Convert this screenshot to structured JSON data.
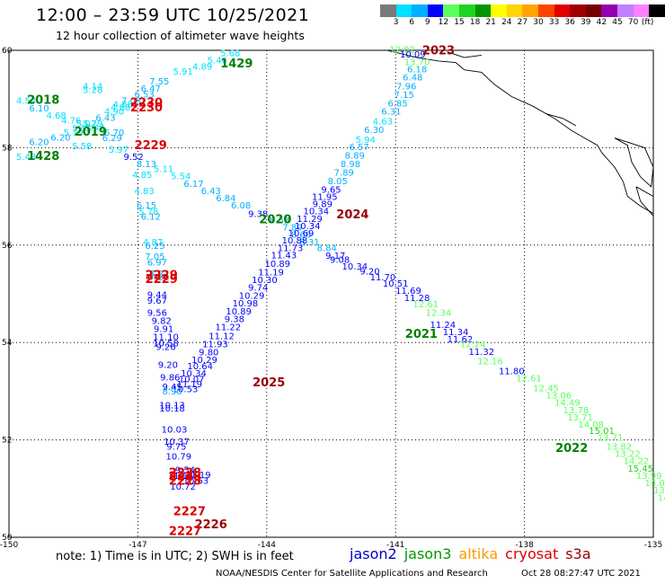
{
  "header": {
    "title": "12:00 – 23:59 UTC 10/25/2021",
    "subtitle": "12 hour collection of altimeter wave heights"
  },
  "color_scale": {
    "unit": "(ft)",
    "swatches": [
      "#7a7a7a",
      "#00e0ff",
      "#00b0ff",
      "#0000ff",
      "#5cff5c",
      "#1ed41e",
      "#009600",
      "#ffff00",
      "#ffd400",
      "#ffa500",
      "#ff4500",
      "#e00000",
      "#a00000",
      "#7a0000",
      "#9400b0",
      "#c080ff",
      "#ff80ff",
      "#000000"
    ],
    "ticks": [
      "3",
      "6",
      "9",
      "12",
      "15",
      "18",
      "21",
      "24",
      "27",
      "30",
      "33",
      "36",
      "39",
      "42",
      "45",
      "70"
    ]
  },
  "axes": {
    "lon_labels": [
      "-150",
      "-147",
      "-144",
      "-141",
      "-138",
      "-135"
    ],
    "lat_labels": [
      "60",
      "58",
      "56",
      "54",
      "52",
      "50"
    ]
  },
  "satellites": [
    {
      "name": "jason2",
      "color": "#0000cc"
    },
    {
      "name": "jason3",
      "color": "#009900"
    },
    {
      "name": "altika",
      "color": "#ff9900"
    },
    {
      "name": "cryosat",
      "color": "#dd0000"
    },
    {
      "name": "s3a",
      "color": "#990000"
    }
  ],
  "pass_labels": [
    {
      "t": "1429",
      "c": "#008000",
      "lon": -144.7,
      "lat": 59.65
    },
    {
      "t": "2018",
      "c": "#008000",
      "lon": -149.2,
      "lat": 58.9
    },
    {
      "t": "2019",
      "c": "#008000",
      "lon": -148.1,
      "lat": 58.25
    },
    {
      "t": "1428",
      "c": "#008000",
      "lon": -149.2,
      "lat": 57.75
    },
    {
      "t": "2230",
      "c": "#dd0000",
      "lon": -146.8,
      "lat": 58.85
    },
    {
      "t": "2230",
      "c": "#dd0000",
      "lon": -146.8,
      "lat": 58.75
    },
    {
      "t": "2229",
      "c": "#dd0000",
      "lon": -146.7,
      "lat": 57.97
    },
    {
      "t": "2020",
      "c": "#008000",
      "lon": -143.8,
      "lat": 56.45
    },
    {
      "t": "2024",
      "c": "#990000",
      "lon": -142.0,
      "lat": 56.55
    },
    {
      "t": "2229",
      "c": "#dd0000",
      "lon": -146.45,
      "lat": 55.3
    },
    {
      "t": "2229",
      "c": "#dd0000",
      "lon": -146.45,
      "lat": 55.22
    },
    {
      "t": "2021",
      "c": "#008000",
      "lon": -140.4,
      "lat": 54.1
    },
    {
      "t": "2025",
      "c": "#990000",
      "lon": -143.95,
      "lat": 53.1
    },
    {
      "t": "2022",
      "c": "#008000",
      "lon": -136.9,
      "lat": 51.75
    },
    {
      "t": "2228",
      "c": "#dd0000",
      "lon": -145.9,
      "lat": 51.25
    },
    {
      "t": "2228",
      "c": "#dd0000",
      "lon": -145.9,
      "lat": 51.17
    },
    {
      "t": "2228",
      "c": "#dd0000",
      "lon": -145.9,
      "lat": 51.08
    },
    {
      "t": "2227",
      "c": "#dd0000",
      "lon": -145.8,
      "lat": 50.45
    },
    {
      "t": "2226",
      "c": "#990000",
      "lon": -145.3,
      "lat": 50.18
    },
    {
      "t": "2227",
      "c": "#dd0000",
      "lon": -145.9,
      "lat": 50.05
    },
    {
      "t": "2023",
      "c": "#990000",
      "lon": -140.0,
      "lat": 59.92
    }
  ],
  "tracks": [
    {
      "name": "jason3-north-east",
      "points": [
        [
          "5.68",
          -144.85,
          59.88
        ],
        [
          "5.46",
          -145.15,
          59.73
        ],
        [
          "4.89",
          -145.5,
          59.6
        ],
        [
          "5.91",
          -145.95,
          59.5
        ],
        [
          "7.55",
          -146.5,
          59.3
        ],
        [
          "6.47",
          -146.7,
          59.15
        ],
        [
          "6.53",
          -146.85,
          59.03
        ],
        [
          "7.03",
          -147.15,
          58.9
        ],
        [
          "4.88",
          -147.35,
          58.83
        ],
        [
          "4.88",
          -147.4,
          58.76
        ],
        [
          "4.90",
          -147.55,
          58.68
        ],
        [
          "6.43",
          -147.75,
          58.55
        ],
        [
          "5.79",
          -148.05,
          58.43
        ],
        [
          "5.55",
          -148.3,
          58.33
        ],
        [
          "5.79",
          -148.5,
          58.25
        ],
        [
          "6.20",
          -148.8,
          58.15
        ],
        [
          "5.43",
          -149.6,
          57.75
        ]
      ]
    },
    {
      "name": "jason3-north-west",
      "points": [
        [
          "4.14",
          -148.05,
          59.2
        ],
        [
          "5.28",
          -148.05,
          59.12
        ],
        [
          "4.54",
          -149.6,
          58.9
        ],
        [
          "6.10",
          -149.3,
          58.75
        ],
        [
          "4.68",
          -148.9,
          58.6
        ],
        [
          "4.76",
          -148.55,
          58.5
        ],
        [
          "5.02",
          -148.2,
          58.43
        ],
        [
          "5.44",
          -148.0,
          58.35
        ],
        [
          "6.70",
          -147.55,
          58.25
        ],
        [
          "6.29",
          -147.6,
          58.14
        ],
        [
          "6.20",
          -149.3,
          58.05
        ],
        [
          "5.58",
          -148.3,
          57.97
        ],
        [
          "5.97",
          -147.45,
          57.9
        ]
      ]
    },
    {
      "name": "cryosat-2229-2020-2021-2022",
      "points": [
        [
          "9.52",
          -147.1,
          57.75
        ],
        [
          "8.13",
          -146.8,
          57.6
        ],
        [
          "5.11",
          -146.4,
          57.5
        ],
        [
          "5.54",
          -146.0,
          57.35
        ],
        [
          "6.17",
          -145.7,
          57.2
        ],
        [
          "6.43",
          -145.3,
          57.05
        ],
        [
          "6.84",
          -144.95,
          56.9
        ],
        [
          "6.08",
          -144.6,
          56.75
        ],
        [
          "9.38",
          -144.2,
          56.58
        ],
        [
          "8.53",
          -143.7,
          56.45
        ],
        [
          "7.89",
          -143.4,
          56.3
        ],
        [
          "8.66",
          -143.2,
          56.15
        ],
        [
          "8.31",
          -143.0,
          56.0
        ],
        [
          "8.84",
          -142.6,
          55.88
        ],
        [
          "9.17",
          -142.4,
          55.72
        ],
        [
          "9.08",
          -142.3,
          55.64
        ],
        [
          "10.34",
          -141.95,
          55.5
        ],
        [
          "9.20",
          -141.6,
          55.4
        ],
        [
          "11.70",
          -141.3,
          55.28
        ],
        [
          "10.51",
          -141.0,
          55.15
        ],
        [
          "11.69",
          -140.7,
          55.0
        ],
        [
          "11.28",
          -140.5,
          54.85
        ],
        [
          "12.61",
          -140.3,
          54.72
        ],
        [
          "12.34",
          -140.0,
          54.55
        ],
        [
          "11.24",
          -139.9,
          54.3
        ],
        [
          "11.34",
          -139.6,
          54.15
        ],
        [
          "11.62",
          -139.5,
          54.0
        ],
        [
          "12.24",
          -139.2,
          53.9
        ],
        [
          "11.32",
          -139.0,
          53.75
        ],
        [
          "12.16",
          -138.8,
          53.55
        ],
        [
          "11.80",
          -138.3,
          53.35
        ],
        [
          "12.61",
          -137.9,
          53.2
        ],
        [
          "12.45",
          -137.5,
          53.0
        ],
        [
          "13.06",
          -137.2,
          52.85
        ],
        [
          "14.49",
          -137.0,
          52.7
        ],
        [
          "13.78",
          -136.8,
          52.55
        ],
        [
          "13.71",
          -136.7,
          52.4
        ],
        [
          "14.08",
          -136.45,
          52.25
        ],
        [
          "15.01",
          -136.2,
          52.12
        ],
        [
          "13.71",
          -136.0,
          51.98
        ],
        [
          "13.82",
          -135.8,
          51.8
        ],
        [
          "13.22",
          -135.6,
          51.65
        ],
        [
          "14.22",
          -135.4,
          51.5
        ],
        [
          "15.45",
          -135.3,
          51.35
        ],
        [
          "13.99",
          -135.1,
          51.2
        ],
        [
          "14.08",
          -134.9,
          51.05
        ],
        [
          "13.68",
          -134.7,
          50.9
        ],
        [
          "14.10",
          -134.6,
          50.75
        ],
        [
          "13.23",
          -134.4,
          50.6
        ],
        [
          "14.31",
          -134.25,
          50.45
        ]
      ]
    },
    {
      "name": "jason2-2025-north",
      "points": [
        [
          "12.02",
          -140.85,
          59.95
        ],
        [
          "10.09",
          -140.6,
          59.85
        ],
        [
          "13.70",
          -140.5,
          59.7
        ],
        [
          "6.18",
          -140.5,
          59.55
        ],
        [
          "6.48",
          -140.6,
          59.38
        ],
        [
          "7.96",
          -140.75,
          59.2
        ],
        [
          "7.15",
          -140.8,
          59.02
        ],
        [
          "6.85",
          -140.95,
          58.85
        ],
        [
          "6.31",
          -141.1,
          58.68
        ],
        [
          "4.63",
          -141.3,
          58.48
        ],
        [
          "6.30",
          -141.5,
          58.3
        ],
        [
          "5.94",
          -141.7,
          58.1
        ],
        [
          "6.57",
          -141.85,
          57.95
        ],
        [
          "8.89",
          -141.95,
          57.78
        ],
        [
          "8.98",
          -142.05,
          57.6
        ],
        [
          "7.89",
          -142.2,
          57.43
        ],
        [
          "8.05",
          -142.35,
          57.25
        ],
        [
          "9.65",
          -142.5,
          57.08
        ],
        [
          "11.95",
          -142.65,
          56.93
        ],
        [
          "9.89",
          -142.7,
          56.78
        ],
        [
          "10.34",
          -142.85,
          56.63
        ],
        [
          "11.29",
          -143.0,
          56.48
        ],
        [
          "10.34",
          -143.05,
          56.33
        ],
        [
          "10.69",
          -143.2,
          56.18
        ],
        [
          "10.88",
          -143.35,
          56.03
        ],
        [
          "11.73",
          -143.45,
          55.88
        ],
        [
          "11.43",
          -143.6,
          55.73
        ],
        [
          "10.89",
          -143.75,
          55.55
        ],
        [
          "11.19",
          -143.9,
          55.38
        ],
        [
          "10.30",
          -144.05,
          55.22
        ],
        [
          "9.74",
          -144.2,
          55.06
        ],
        [
          "10.29",
          -144.35,
          54.9
        ],
        [
          "10.98",
          -144.5,
          54.74
        ],
        [
          "10.89",
          -144.65,
          54.58
        ],
        [
          "9.38",
          -144.75,
          54.42
        ],
        [
          "11.22",
          -144.9,
          54.25
        ],
        [
          "11.12",
          -145.05,
          54.07
        ],
        [
          "11.93",
          -145.2,
          53.9
        ],
        [
          "9.80",
          -145.35,
          53.74
        ],
        [
          "10.29",
          -145.45,
          53.58
        ],
        [
          "10.64",
          -145.55,
          53.45
        ],
        [
          "10.34",
          -145.7,
          53.3
        ],
        [
          "10.07",
          -145.75,
          53.18
        ],
        [
          "11.19",
          -145.8,
          53.08
        ],
        [
          "10.53",
          -145.9,
          52.98
        ]
      ]
    },
    {
      "name": "jason2-2025-south",
      "points": [
        [
          "4.85",
          -146.9,
          57.38
        ],
        [
          "4.83",
          -146.85,
          57.05
        ],
        [
          "6.15",
          -146.8,
          56.75
        ],
        [
          "5.78",
          -146.75,
          56.62
        ],
        [
          "6.12",
          -146.7,
          56.52
        ],
        [
          "4.87",
          -146.65,
          56.0
        ],
        [
          "6.25",
          -146.6,
          55.92
        ],
        [
          "7.05",
          -146.6,
          55.7
        ],
        [
          "6.97",
          -146.55,
          55.58
        ],
        [
          "7.21",
          -146.5,
          55.35
        ],
        [
          "7.21",
          -146.5,
          55.28
        ],
        [
          "9.44",
          -146.55,
          54.92
        ],
        [
          "9.67",
          -146.55,
          54.8
        ],
        [
          "9.56",
          -146.55,
          54.55
        ],
        [
          "9.82",
          -146.45,
          54.38
        ],
        [
          "9.91",
          -146.4,
          54.22
        ],
        [
          "11.10",
          -146.35,
          54.05
        ],
        [
          "10.58",
          -146.35,
          53.92
        ],
        [
          "9.26",
          -146.35,
          53.85
        ],
        [
          "9.20",
          -146.3,
          53.48
        ],
        [
          "9.86",
          -146.25,
          53.22
        ],
        [
          "9.45",
          -146.2,
          53.03
        ],
        [
          "8.90",
          -146.2,
          52.93
        ],
        [
          "10.13",
          -146.2,
          52.65
        ],
        [
          "10.18",
          -146.2,
          52.58
        ],
        [
          "10.03",
          -146.15,
          52.15
        ],
        [
          "10.37",
          -146.1,
          51.9
        ],
        [
          "9.75",
          -146.1,
          51.8
        ],
        [
          "10.79",
          -146.05,
          51.6
        ],
        [
          "9.54",
          -145.9,
          51.32
        ],
        [
          "11.15",
          -146.0,
          51.2
        ],
        [
          "10.72",
          -145.95,
          50.98
        ],
        [
          "10.63",
          -145.65,
          51.1
        ],
        [
          "11.19",
          -145.6,
          51.22
        ]
      ]
    }
  ],
  "footer": {
    "note": "note: 1) Time is in UTC; 2) SWH is in feet",
    "credit": "NOAA/NESDIS Center for Satellite Applications and Research",
    "timestamp": "Oct 28 08:27:47 UTC 2021"
  }
}
